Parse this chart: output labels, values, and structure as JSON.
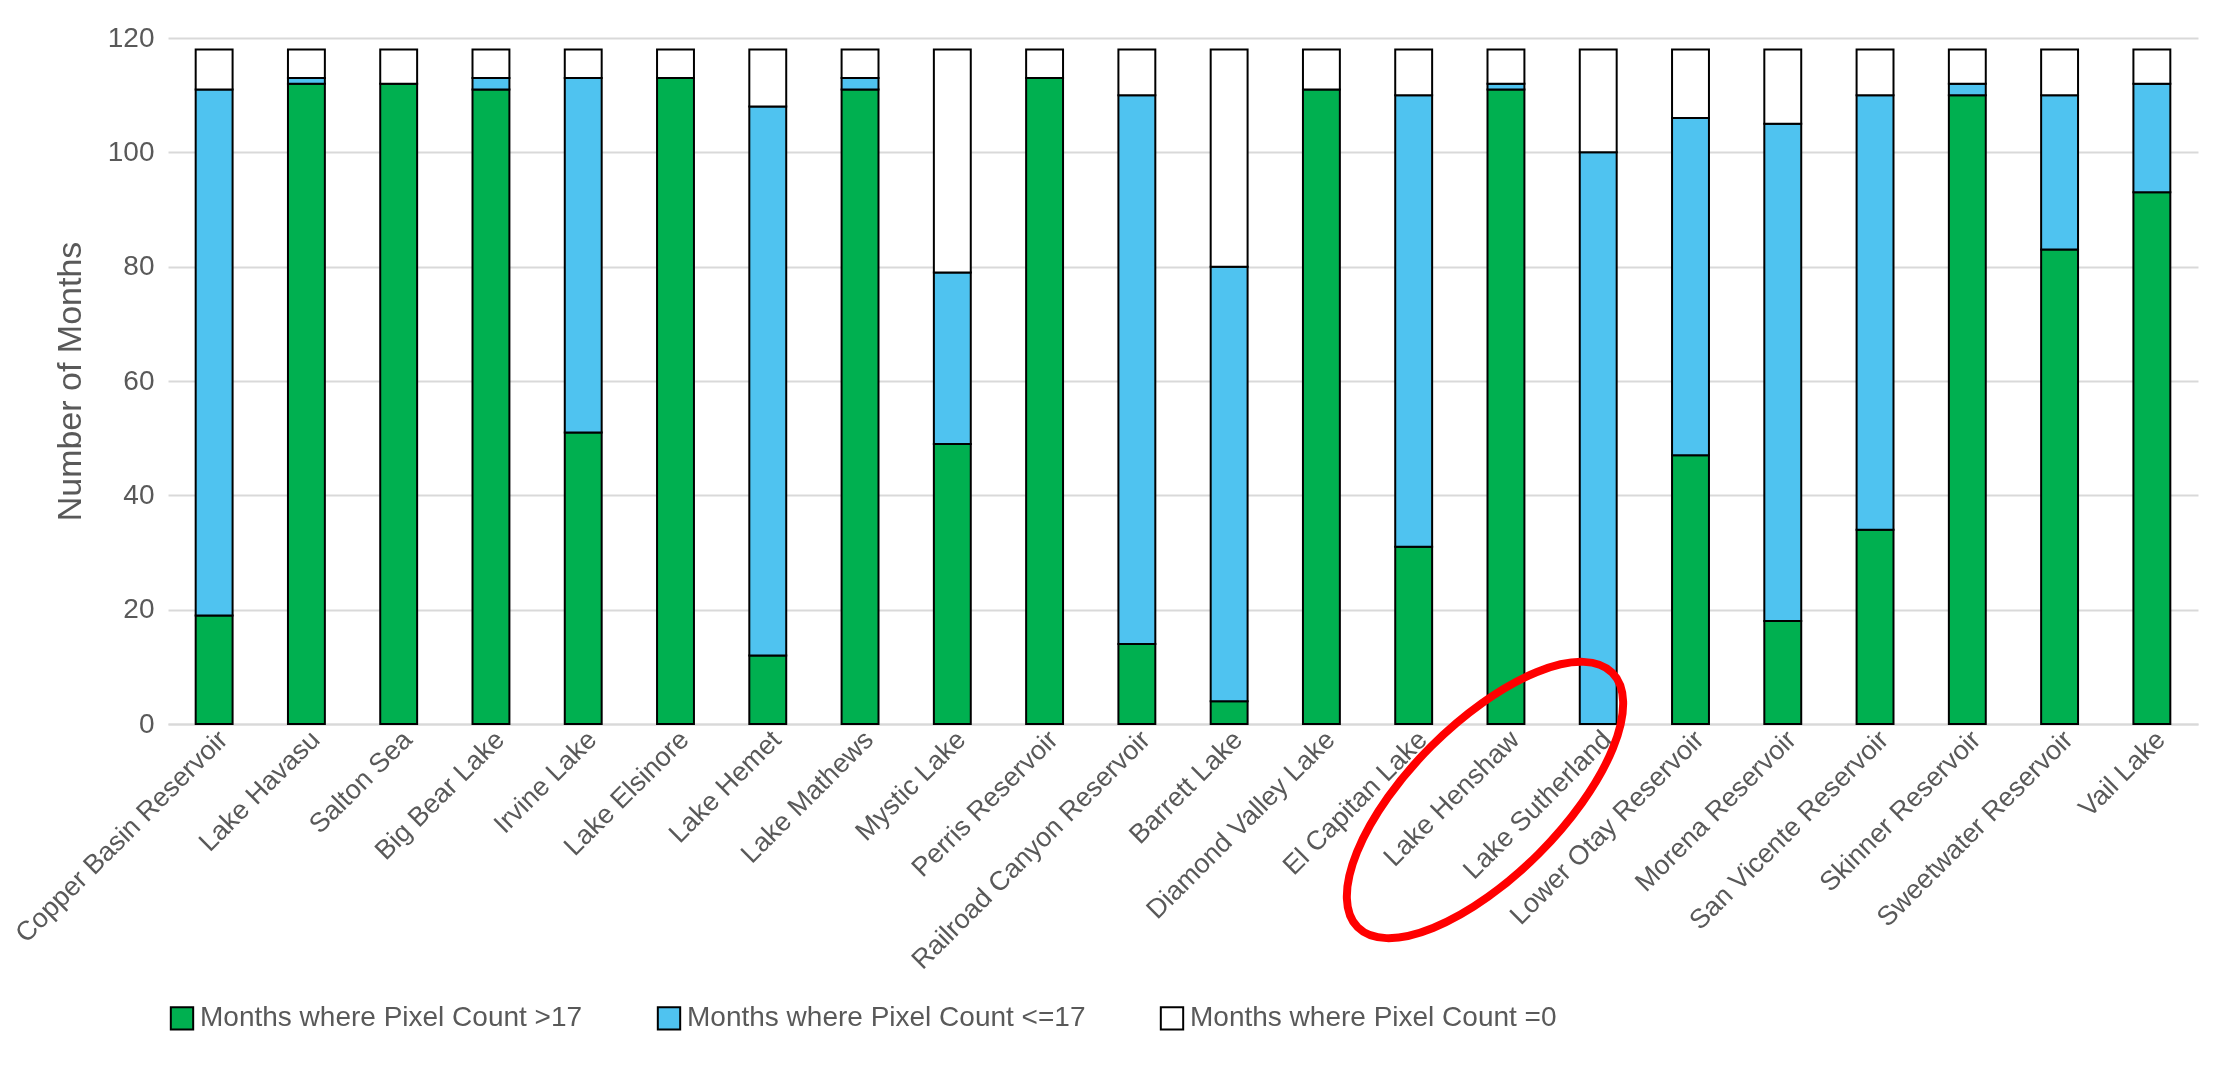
{
  "chart_data": {
    "type": "bar",
    "stacked": true,
    "ylabel": "Number of Months",
    "categories": [
      "Copper Basin Reservoir",
      "Lake Havasu",
      "Salton Sea",
      "Big Bear Lake",
      "Irvine Lake",
      "Lake Elsinore",
      "Lake Hemet",
      "Lake Mathews",
      "Mystic Lake",
      "Perris Reservoir",
      "Railroad Canyon Reservoir",
      "Barrett Lake",
      "Diamond Valley Lake",
      "El Capitan Lake",
      "Lake Henshaw",
      "Lake Sutherland",
      "Lower Otay Reservoir",
      "Morena Reservoir",
      "San Vicente Reservoir",
      "Skinner Reservoir",
      "Sweetwater Reservoir",
      "Vail Lake"
    ],
    "series": [
      {
        "name": "Months where Pixel Count >17",
        "color": "#00b050",
        "values": [
          19,
          112,
          112,
          111,
          51,
          113,
          12,
          111,
          49,
          113,
          14,
          4,
          111,
          31,
          111,
          0,
          47,
          18,
          34,
          110,
          83,
          93
        ]
      },
      {
        "name": "Months where Pixel Count <=17",
        "color": "#4fc3f0",
        "values": [
          92,
          1,
          0,
          2,
          62,
          0,
          96,
          2,
          30,
          0,
          96,
          76,
          0,
          79,
          1,
          100,
          59,
          87,
          76,
          2,
          27,
          19
        ]
      },
      {
        "name": "Months where Pixel Count =0",
        "color": "#ffffff",
        "values": [
          7,
          5,
          6,
          5,
          5,
          5,
          10,
          5,
          39,
          5,
          8,
          38,
          7,
          8,
          6,
          18,
          12,
          13,
          8,
          6,
          8,
          6
        ]
      }
    ],
    "ylim": [
      0,
      120
    ],
    "yticks": [
      0,
      20,
      40,
      60,
      80,
      100,
      120
    ],
    "grid": "y",
    "legend": "bottom"
  }
}
